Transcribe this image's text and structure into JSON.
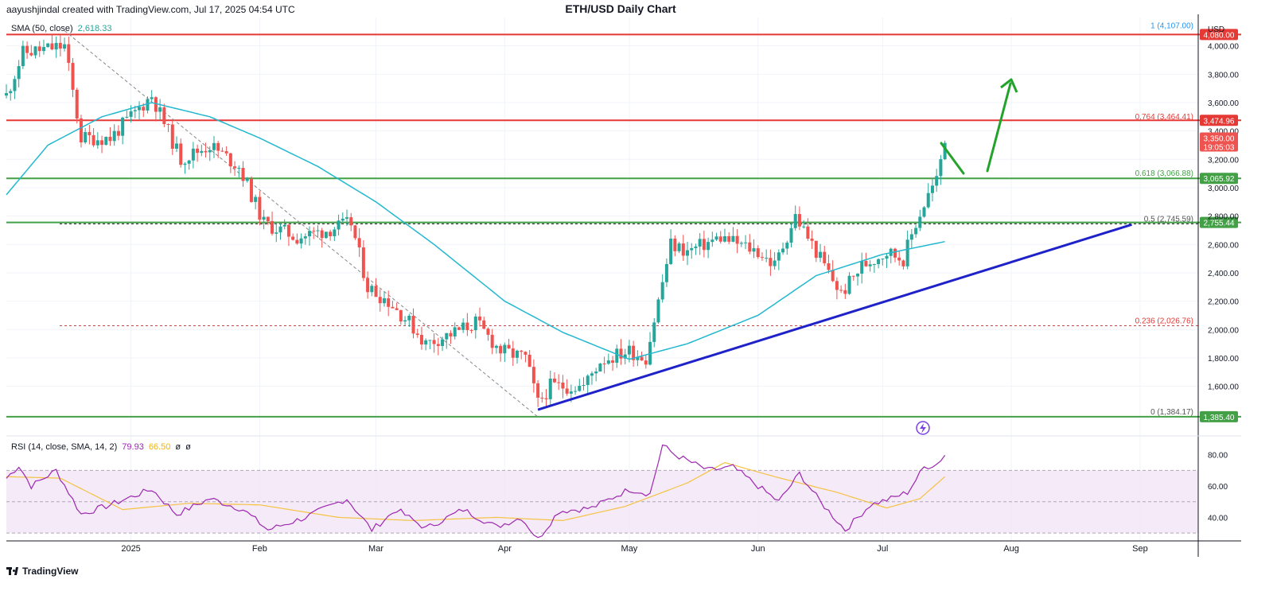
{
  "header": {
    "author_line": "aayushjindal created with TradingView.com, Jul 17, 2025 04:54 UTC",
    "title": "ETH/USD Daily Chart"
  },
  "legend_main": {
    "label": "SMA (50, close)",
    "value": "2,618.33",
    "value_color": "#26a69a"
  },
  "legend_rsi": {
    "label": "RSI (14, close, SMA, 14, 2)",
    "rsi": "79.93",
    "rsi_color": "#9c27b0",
    "sma": "66.50",
    "sma_color": "#f5b400",
    "extra1": "ø",
    "extra2": "ø"
  },
  "footer": {
    "brand": "TradingView"
  },
  "colors": {
    "up": "#26a69a",
    "down": "#ef5350",
    "sma": "#22b8cf",
    "resistance": "#e53935",
    "support": "#43a047",
    "trend": "#1e22c8",
    "arrow": "#23a32b",
    "rsi": "#9c27b0",
    "rsi_sma": "#f5c242",
    "rsi_band": "#f3e5f5"
  },
  "chart_data": {
    "type": "candlestick",
    "title": "ETH/USD Daily Chart",
    "ylabel": "USD",
    "ylim": [
      1250,
      4200
    ],
    "x_tick_labels": [
      "2025",
      "Feb",
      "Mar",
      "Apr",
      "May",
      "Jun",
      "Jul",
      "Aug",
      "Sep"
    ],
    "y_tick_labels": [
      "4,000.00",
      "3,800.00",
      "3,600.00",
      "3,400.00",
      "3,200.00",
      "3,000.00",
      "2,800.00",
      "2,600.00",
      "2,400.00",
      "2,200.00",
      "2,000.00",
      "1,800.00",
      "1,600.00"
    ],
    "y_ticks": [
      4000,
      3800,
      3600,
      3400,
      3200,
      3000,
      2800,
      2600,
      2400,
      2200,
      2000,
      1800,
      1600
    ],
    "date_range": [
      "2024-12-02",
      "2025-09-15"
    ],
    "close_series_anchors": [
      {
        "date": "2024-12-02",
        "close": 3650
      },
      {
        "date": "2024-12-06",
        "close": 3950
      },
      {
        "date": "2024-12-16",
        "close": 4000
      },
      {
        "date": "2024-12-20",
        "close": 3350
      },
      {
        "date": "2024-12-27",
        "close": 3350
      },
      {
        "date": "2025-01-06",
        "close": 3650
      },
      {
        "date": "2025-01-13",
        "close": 3200
      },
      {
        "date": "2025-01-20",
        "close": 3300
      },
      {
        "date": "2025-01-27",
        "close": 3150
      },
      {
        "date": "2025-02-02",
        "close": 2750
      },
      {
        "date": "2025-02-10",
        "close": 2650
      },
      {
        "date": "2025-02-17",
        "close": 2700
      },
      {
        "date": "2025-02-23",
        "close": 2750
      },
      {
        "date": "2025-02-27",
        "close": 2300
      },
      {
        "date": "2025-03-04",
        "close": 2200
      },
      {
        "date": "2025-03-09",
        "close": 2050
      },
      {
        "date": "2025-03-13",
        "close": 1900
      },
      {
        "date": "2025-03-20",
        "close": 1980
      },
      {
        "date": "2025-03-25",
        "close": 2050
      },
      {
        "date": "2025-03-31",
        "close": 1850
      },
      {
        "date": "2025-04-06",
        "close": 1800
      },
      {
        "date": "2025-04-09",
        "close": 1480
      },
      {
        "date": "2025-04-12",
        "close": 1600
      },
      {
        "date": "2025-04-20",
        "close": 1600
      },
      {
        "date": "2025-04-24",
        "close": 1780
      },
      {
        "date": "2025-05-01",
        "close": 1850
      },
      {
        "date": "2025-05-05",
        "close": 1800
      },
      {
        "date": "2025-05-08",
        "close": 2200
      },
      {
        "date": "2025-05-11",
        "close": 2600
      },
      {
        "date": "2025-05-15",
        "close": 2550
      },
      {
        "date": "2025-05-23",
        "close": 2650
      },
      {
        "date": "2025-06-01",
        "close": 2550
      },
      {
        "date": "2025-06-05",
        "close": 2450
      },
      {
        "date": "2025-06-10",
        "close": 2800
      },
      {
        "date": "2025-06-15",
        "close": 2550
      },
      {
        "date": "2025-06-21",
        "close": 2250
      },
      {
        "date": "2025-06-26",
        "close": 2450
      },
      {
        "date": "2025-07-02",
        "close": 2550
      },
      {
        "date": "2025-07-06",
        "close": 2500
      },
      {
        "date": "2025-07-09",
        "close": 2750
      },
      {
        "date": "2025-07-12",
        "close": 2950
      },
      {
        "date": "2025-07-14",
        "close": 3050
      },
      {
        "date": "2025-07-16",
        "close": 3350
      }
    ],
    "sma50_anchors": [
      {
        "date": "2024-12-02",
        "value": 2950
      },
      {
        "date": "2024-12-12",
        "value": 3300
      },
      {
        "date": "2024-12-25",
        "value": 3500
      },
      {
        "date": "2025-01-06",
        "value": 3600
      },
      {
        "date": "2025-01-20",
        "value": 3500
      },
      {
        "date": "2025-02-01",
        "value": 3350
      },
      {
        "date": "2025-02-15",
        "value": 3150
      },
      {
        "date": "2025-03-01",
        "value": 2900
      },
      {
        "date": "2025-03-15",
        "value": 2600
      },
      {
        "date": "2025-04-01",
        "value": 2200
      },
      {
        "date": "2025-04-15",
        "value": 1980
      },
      {
        "date": "2025-05-01",
        "value": 1790
      },
      {
        "date": "2025-05-15",
        "value": 1900
      },
      {
        "date": "2025-06-01",
        "value": 2100
      },
      {
        "date": "2025-06-15",
        "value": 2380
      },
      {
        "date": "2025-07-01",
        "value": 2530
      },
      {
        "date": "2025-07-16",
        "value": 2620
      }
    ],
    "horizontal_levels": [
      {
        "price": 4107.0,
        "label": "1 (4,107.00)",
        "kind": "fib"
      },
      {
        "price": 4080,
        "axis_label": "4,080.00",
        "kind": "resistance"
      },
      {
        "price": 3474.96,
        "axis_label": "3,474.96",
        "kind": "resistance"
      },
      {
        "price": 3464.41,
        "label": "0.764 (3,464.41)",
        "kind": "fib"
      },
      {
        "price": 3066.88,
        "label": "0.618 (3,066.88)",
        "kind": "fib"
      },
      {
        "price": 3065.92,
        "axis_label": "3,065.92",
        "kind": "support"
      },
      {
        "price": 2755.44,
        "axis_label": "2,755.44",
        "kind": "support"
      },
      {
        "price": 2745.59,
        "label": "0.5 (2,745.59)",
        "kind": "fib"
      },
      {
        "price": 2026.76,
        "label": "0.236 (2,026.76)",
        "kind": "fib"
      },
      {
        "price": 1385.4,
        "axis_label": "1,385.40",
        "kind": "support"
      },
      {
        "price": 1384.17,
        "label": "0 (1,384.17)",
        "kind": "fib"
      }
    ],
    "price_tag": {
      "price": 3350.0,
      "label": "3,350.00",
      "countdown": "19:05:03"
    },
    "trendline": {
      "from": {
        "date": "2025-04-09",
        "price": 1435
      },
      "to": {
        "date": "2025-08-30",
        "price": 2740
      }
    },
    "fib_diagonal": {
      "from": {
        "date": "2024-12-16",
        "price": 4107
      },
      "to": {
        "date": "2025-04-09",
        "price": 1384
      }
    },
    "rsi": {
      "ylim": [
        25,
        92
      ],
      "y_ticks": [
        80,
        60,
        40
      ],
      "y_tick_labels": [
        "80.00",
        "60.00",
        "40.00"
      ],
      "band": [
        30,
        70
      ],
      "mid": 50,
      "rsi_anchors": [
        {
          "date": "2024-12-02",
          "value": 65
        },
        {
          "date": "2024-12-05",
          "value": 73
        },
        {
          "date": "2024-12-08",
          "value": 60
        },
        {
          "date": "2024-12-14",
          "value": 70
        },
        {
          "date": "2024-12-20",
          "value": 42
        },
        {
          "date": "2024-12-27",
          "value": 48
        },
        {
          "date": "2025-01-06",
          "value": 58
        },
        {
          "date": "2025-01-12",
          "value": 42
        },
        {
          "date": "2025-01-20",
          "value": 52
        },
        {
          "date": "2025-01-28",
          "value": 45
        },
        {
          "date": "2025-02-03",
          "value": 32
        },
        {
          "date": "2025-02-12",
          "value": 40
        },
        {
          "date": "2025-02-22",
          "value": 52
        },
        {
          "date": "2025-02-28",
          "value": 32
        },
        {
          "date": "2025-03-06",
          "value": 45
        },
        {
          "date": "2025-03-13",
          "value": 33
        },
        {
          "date": "2025-03-22",
          "value": 45
        },
        {
          "date": "2025-03-30",
          "value": 34
        },
        {
          "date": "2025-04-05",
          "value": 40
        },
        {
          "date": "2025-04-09",
          "value": 26
        },
        {
          "date": "2025-04-14",
          "value": 44
        },
        {
          "date": "2025-04-22",
          "value": 46
        },
        {
          "date": "2025-05-01",
          "value": 58
        },
        {
          "date": "2025-05-06",
          "value": 55
        },
        {
          "date": "2025-05-09",
          "value": 86
        },
        {
          "date": "2025-05-12",
          "value": 80
        },
        {
          "date": "2025-05-20",
          "value": 70
        },
        {
          "date": "2025-05-26",
          "value": 72
        },
        {
          "date": "2025-06-02",
          "value": 58
        },
        {
          "date": "2025-06-06",
          "value": 50
        },
        {
          "date": "2025-06-11",
          "value": 68
        },
        {
          "date": "2025-06-16",
          "value": 50
        },
        {
          "date": "2025-06-22",
          "value": 32
        },
        {
          "date": "2025-06-28",
          "value": 48
        },
        {
          "date": "2025-07-03",
          "value": 52
        },
        {
          "date": "2025-07-07",
          "value": 56
        },
        {
          "date": "2025-07-11",
          "value": 72
        },
        {
          "date": "2025-07-14",
          "value": 74
        },
        {
          "date": "2025-07-16",
          "value": 80
        }
      ],
      "sma_anchors": [
        {
          "date": "2024-12-02",
          "value": 66
        },
        {
          "date": "2024-12-15",
          "value": 65
        },
        {
          "date": "2024-12-30",
          "value": 45
        },
        {
          "date": "2025-01-15",
          "value": 49
        },
        {
          "date": "2025-02-01",
          "value": 48
        },
        {
          "date": "2025-02-20",
          "value": 40
        },
        {
          "date": "2025-03-10",
          "value": 38
        },
        {
          "date": "2025-03-30",
          "value": 40
        },
        {
          "date": "2025-04-15",
          "value": 38
        },
        {
          "date": "2025-04-30",
          "value": 47
        },
        {
          "date": "2025-05-15",
          "value": 62
        },
        {
          "date": "2025-05-24",
          "value": 75
        },
        {
          "date": "2025-06-05",
          "value": 66
        },
        {
          "date": "2025-06-20",
          "value": 56
        },
        {
          "date": "2025-07-02",
          "value": 46
        },
        {
          "date": "2025-07-10",
          "value": 52
        },
        {
          "date": "2025-07-16",
          "value": 66
        }
      ]
    }
  }
}
